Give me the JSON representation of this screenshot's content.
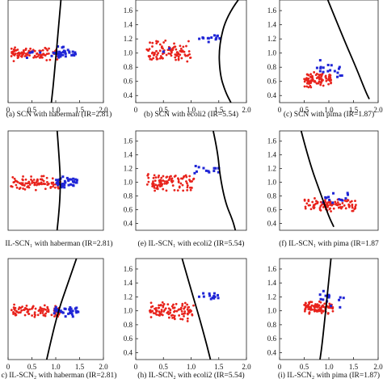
{
  "chart_data": [
    {
      "id": "a",
      "type": "scatter",
      "caption": "(a) SCN with haberman (IR=2.81)",
      "xlim": [
        0,
        2.0
      ],
      "ylim": [
        0.7,
        1.5
      ],
      "xticks": [
        "0",
        "0.5",
        "1.0",
        "1.5",
        "2.0"
      ],
      "yticks": [],
      "boundary": [
        [
          1.12,
          1.55
        ],
        [
          1.04,
          1.2
        ],
        [
          1.0,
          1.05
        ],
        [
          0.94,
          0.8
        ],
        [
          0.86,
          0.55
        ]
      ],
      "clusters": [
        {
          "color": "#e8231c",
          "n": 90,
          "x": [
            0.05,
            1.05
          ],
          "y": [
            1.02,
            1.14
          ],
          "seed": 11
        },
        {
          "color": "#1f25d6",
          "n": 35,
          "x": [
            0.95,
            1.42
          ],
          "y": [
            1.03,
            1.14
          ],
          "seed": 12
        },
        {
          "color": "#1f25d6",
          "n": 6,
          "x": [
            0.3,
            0.95
          ],
          "y": [
            1.03,
            1.13
          ],
          "seed": 13
        }
      ]
    },
    {
      "id": "b",
      "type": "scatter",
      "caption": "(b) SCN with ecoli2 (IR=5.54)",
      "xlim": [
        0,
        2.0
      ],
      "ylim": [
        0.3,
        1.75
      ],
      "xticks": [
        "0",
        "0.5",
        "1.0",
        "1.5",
        "2.0"
      ],
      "yticks": [
        "0.4",
        "0.6",
        "0.8",
        "1.0",
        "1.2",
        "1.4",
        "1.6"
      ],
      "boundary": [
        [
          1.9,
          1.8
        ],
        [
          1.65,
          1.55
        ],
        [
          1.5,
          1.1
        ],
        [
          1.52,
          0.7
        ],
        [
          1.62,
          0.45
        ],
        [
          1.72,
          0.3
        ]
      ],
      "clusters": [
        {
          "color": "#e8231c",
          "n": 100,
          "x": [
            0.2,
            1.0
          ],
          "y": [
            0.85,
            1.2
          ],
          "seed": 21
        },
        {
          "color": "#1f25d6",
          "n": 14,
          "x": [
            1.1,
            1.55
          ],
          "y": [
            1.15,
            1.27
          ],
          "seed": 22
        },
        {
          "color": "#1f25d6",
          "n": 3,
          "x": [
            0.4,
            0.8
          ],
          "y": [
            0.95,
            1.1
          ],
          "seed": 23
        }
      ]
    },
    {
      "id": "c",
      "type": "scatter",
      "caption": "(c) SCN with pima (IR=1.87)",
      "xlim": [
        0,
        2.0
      ],
      "ylim": [
        0.3,
        1.75
      ],
      "xticks": [
        "0",
        "0.5",
        "1.0",
        "1.5",
        "2.0"
      ],
      "yticks": [
        "0.4",
        "0.6",
        "0.8",
        "1.0",
        "1.2",
        "1.4",
        "1.6"
      ],
      "boundary": [
        [
          0.95,
          1.8
        ],
        [
          1.3,
          1.2
        ],
        [
          1.55,
          0.8
        ],
        [
          1.75,
          0.45
        ],
        [
          1.82,
          0.35
        ]
      ],
      "clusters": [
        {
          "color": "#e8231c",
          "n": 90,
          "x": [
            0.5,
            1.05
          ],
          "y": [
            0.5,
            0.75
          ],
          "seed": 31
        },
        {
          "color": "#1f25d6",
          "n": 18,
          "x": [
            0.75,
            1.3
          ],
          "y": [
            0.55,
            0.95
          ],
          "seed": 32
        }
      ]
    },
    {
      "id": "d",
      "type": "scatter",
      "caption": "IL-SCN₁ with haberman (IR=2.81)",
      "xlim": [
        0,
        2.0
      ],
      "ylim": [
        0.7,
        1.5
      ],
      "xticks": [],
      "yticks": [],
      "boundary": [
        [
          1.02,
          1.55
        ],
        [
          1.08,
          1.25
        ],
        [
          1.1,
          1.05
        ],
        [
          1.07,
          0.85
        ],
        [
          1.0,
          0.6
        ]
      ],
      "clusters": [
        {
          "color": "#e8231c",
          "n": 90,
          "x": [
            0.05,
            1.1
          ],
          "y": [
            1.02,
            1.14
          ],
          "seed": 41
        },
        {
          "color": "#1f25d6",
          "n": 40,
          "x": [
            1.0,
            1.45
          ],
          "y": [
            1.03,
            1.14
          ],
          "seed": 42
        }
      ]
    },
    {
      "id": "e",
      "type": "scatter",
      "caption": "(e) IL-SCN₁ with ecoli2 (IR=5.54)",
      "xlim": [
        0,
        2.0
      ],
      "ylim": [
        0.3,
        1.75
      ],
      "xticks": [],
      "yticks": [
        "0.4",
        "0.6",
        "0.8",
        "1.0",
        "1.2",
        "1.4",
        "1.6"
      ],
      "boundary": [
        [
          1.4,
          1.75
        ],
        [
          1.48,
          1.45
        ],
        [
          1.52,
          1.1
        ],
        [
          1.62,
          0.7
        ],
        [
          1.75,
          0.45
        ],
        [
          1.8,
          0.3
        ]
      ],
      "clusters": [
        {
          "color": "#e8231c",
          "n": 100,
          "x": [
            0.2,
            1.05
          ],
          "y": [
            0.85,
            1.15
          ],
          "seed": 51
        },
        {
          "color": "#1f25d6",
          "n": 14,
          "x": [
            1.0,
            1.55
          ],
          "y": [
            1.1,
            1.27
          ],
          "seed": 52
        }
      ]
    },
    {
      "id": "f",
      "type": "scatter",
      "caption": "(f) IL-SCN₁ with pima (IR=1.87",
      "xlim": [
        0,
        2.0
      ],
      "ylim": [
        0.3,
        1.75
      ],
      "xticks": [],
      "yticks": [
        "0.4",
        "0.6",
        "0.8",
        "1.0",
        "1.2",
        "1.4",
        "1.6"
      ],
      "boundary": [
        [
          0.42,
          1.8
        ],
        [
          0.6,
          1.3
        ],
        [
          0.85,
          0.8
        ],
        [
          1.0,
          0.5
        ],
        [
          1.1,
          0.35
        ]
      ],
      "clusters": [
        {
          "color": "#e8231c",
          "n": 100,
          "x": [
            0.5,
            1.55
          ],
          "y": [
            0.55,
            0.78
          ],
          "seed": 61
        },
        {
          "color": "#1f25d6",
          "n": 14,
          "x": [
            0.85,
            1.4
          ],
          "y": [
            0.65,
            0.88
          ],
          "seed": 62
        }
      ]
    },
    {
      "id": "g",
      "type": "scatter",
      "caption": "c) IL-SCN₂ with haberman (IR=2.81)",
      "xlim": [
        0,
        2.0
      ],
      "ylim": [
        0.7,
        1.5
      ],
      "xticks": [
        "0",
        "0.5",
        "1.0",
        "1.5",
        "2.0"
      ],
      "yticks": [],
      "boundary": [
        [
          1.48,
          1.55
        ],
        [
          1.25,
          1.3
        ],
        [
          1.05,
          1.08
        ],
        [
          0.9,
          0.85
        ],
        [
          0.78,
          0.65
        ]
      ],
      "clusters": [
        {
          "color": "#e8231c",
          "n": 90,
          "x": [
            0.05,
            1.1
          ],
          "y": [
            1.03,
            1.14
          ],
          "seed": 71
        },
        {
          "color": "#1f25d6",
          "n": 35,
          "x": [
            0.95,
            1.5
          ],
          "y": [
            1.03,
            1.14
          ],
          "seed": 72
        }
      ]
    },
    {
      "id": "h",
      "type": "scatter",
      "caption": "(h) IL-SCN₂ with ecoli2 (IR=5.54)",
      "xlim": [
        0,
        2.0
      ],
      "ylim": [
        0.3,
        1.75
      ],
      "xticks": [
        "0",
        "0.5",
        "1.0",
        "1.5",
        "2.0"
      ],
      "yticks": [
        "0.4",
        "0.6",
        "0.8",
        "1.0",
        "1.2",
        "1.4",
        "1.6"
      ],
      "boundary": [
        [
          0.82,
          1.8
        ],
        [
          1.0,
          1.3
        ],
        [
          1.15,
          0.9
        ],
        [
          1.27,
          0.55
        ],
        [
          1.35,
          0.3
        ]
      ],
      "clusters": [
        {
          "color": "#e8231c",
          "n": 100,
          "x": [
            0.25,
            1.05
          ],
          "y": [
            0.85,
            1.15
          ],
          "seed": 81
        },
        {
          "color": "#1f25d6",
          "n": 14,
          "x": [
            1.1,
            1.55
          ],
          "y": [
            1.15,
            1.27
          ],
          "seed": 82
        }
      ]
    },
    {
      "id": "i",
      "type": "scatter",
      "caption": "(i) IL-SCN₂ with pima (IR=1.87)",
      "xlim": [
        0,
        2.0
      ],
      "ylim": [
        0.3,
        1.75
      ],
      "xticks": [
        "0",
        "0.5",
        "1.0",
        "1.5",
        "2.0"
      ],
      "yticks": [
        "0.4",
        "0.6",
        "0.8",
        "1.0",
        "1.2",
        "1.4",
        "1.6"
      ],
      "boundary": [
        [
          1.05,
          1.8
        ],
        [
          0.98,
          1.3
        ],
        [
          0.92,
          0.9
        ],
        [
          0.86,
          0.5
        ],
        [
          0.82,
          0.3
        ]
      ],
      "clusters": [
        {
          "color": "#e8231c",
          "n": 100,
          "x": [
            0.5,
            1.1
          ],
          "y": [
            0.95,
            1.15
          ],
          "seed": 91
        },
        {
          "color": "#1f25d6",
          "n": 14,
          "x": [
            0.8,
            1.3
          ],
          "y": [
            1.0,
            1.3
          ],
          "seed": 92
        }
      ]
    }
  ]
}
